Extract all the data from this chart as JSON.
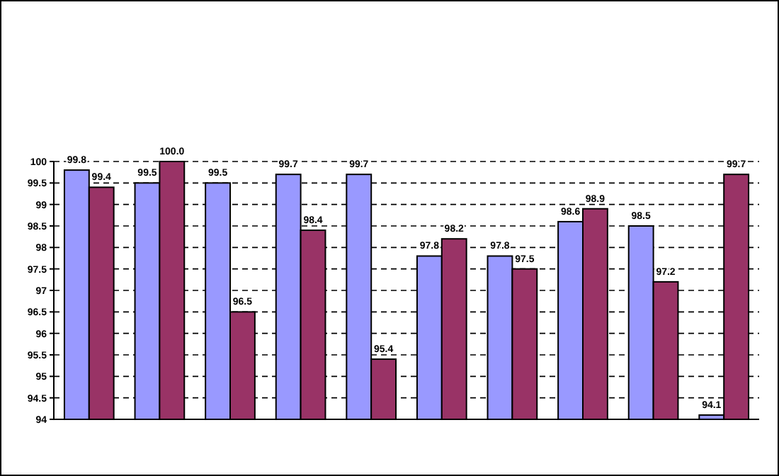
{
  "chart_data": {
    "type": "bar",
    "categories": [
      null,
      null,
      null,
      null,
      null,
      null,
      null,
      null,
      null,
      null
    ],
    "series": [
      {
        "color": "#9999ff",
        "values": [
          99.8,
          99.5,
          99.5,
          99.7,
          99.7,
          97.8,
          97.8,
          98.6,
          98.5,
          94.1
        ],
        "value_labels": [
          "99.8",
          "99.5",
          "99.5",
          "99.7",
          "99.7",
          "97.8",
          "97.8",
          "98.6",
          "98.5",
          "94.1"
        ]
      },
      {
        "color": "#993366",
        "values": [
          99.4,
          100.0,
          96.5,
          98.4,
          95.4,
          98.2,
          97.5,
          98.9,
          97.2,
          99.7
        ],
        "value_labels": [
          "99.4",
          "100.0",
          "96.5",
          "98.4",
          "95.4",
          "98.2",
          "97.5",
          "98.9",
          "97.2",
          "99.7"
        ]
      }
    ],
    "ylim": [
      94,
      100
    ],
    "yticks": [
      94,
      94.5,
      95,
      95.5,
      96,
      96.5,
      97,
      97.5,
      98,
      98.5,
      99,
      99.5,
      100
    ],
    "grid": "y"
  }
}
